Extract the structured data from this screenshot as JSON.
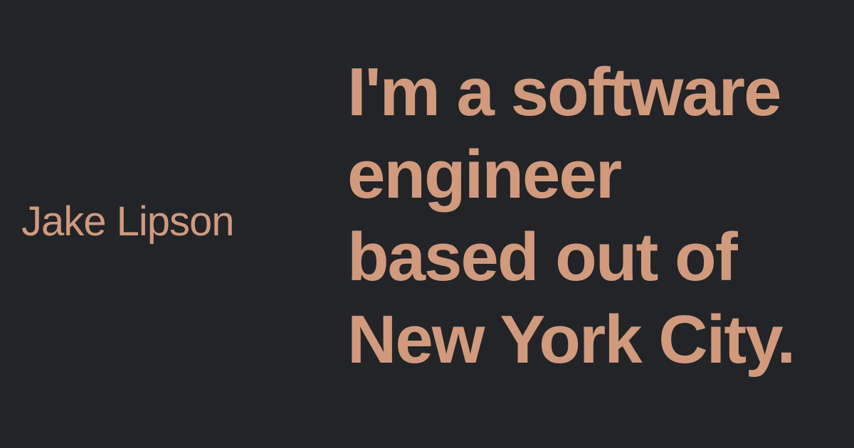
{
  "profile": {
    "name": "Jake Lipson",
    "tagline_lines": [
      "I'm a software",
      "engineer",
      "based out of",
      "New York City."
    ]
  },
  "colors": {
    "background": "#222428",
    "accent": "#d19a7d"
  }
}
